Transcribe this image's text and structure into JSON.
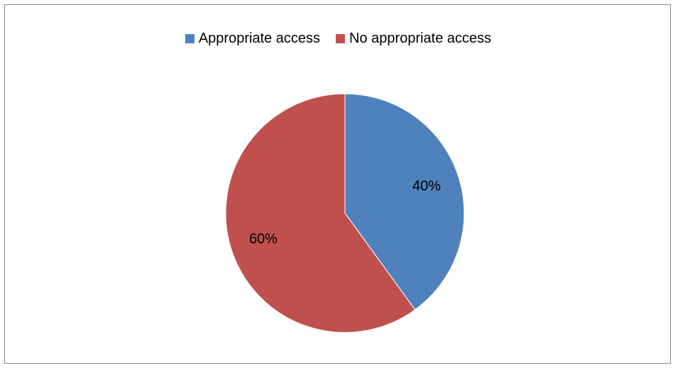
{
  "chart_data": {
    "type": "pie",
    "title": "",
    "categories": [
      "Appropriate access",
      "No appropriate access"
    ],
    "values": [
      40,
      60
    ],
    "data_labels": [
      "40%",
      "60%"
    ],
    "colors": [
      "#4F81BD",
      "#C0504D"
    ],
    "legend_position": "top",
    "start_angle": "12 o'clock, clockwise"
  }
}
